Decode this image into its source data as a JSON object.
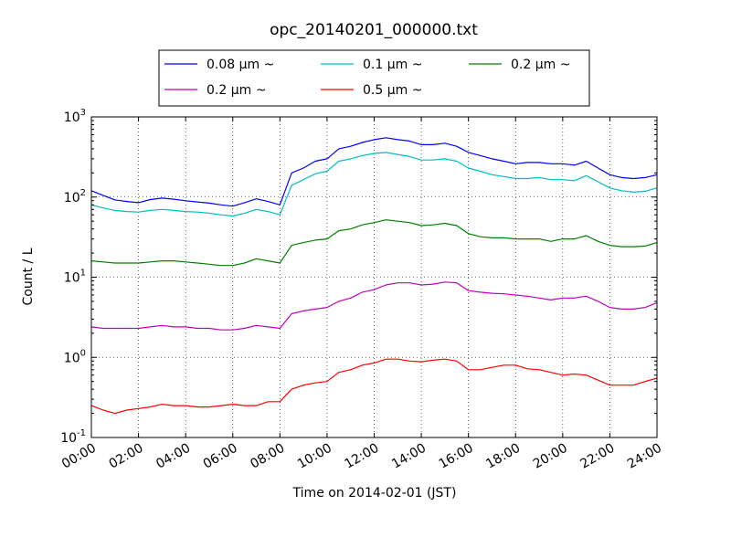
{
  "chart_data": {
    "type": "line",
    "title": "opc_20140201_000000.txt",
    "xlabel": "Time on 2014-02-01 (JST)",
    "ylabel": "Count / L",
    "yscale": "log",
    "ylim": [
      0.1,
      1000
    ],
    "xlim": [
      "00:00",
      "24:00"
    ],
    "x_ticks": [
      "00:00",
      "02:00",
      "04:00",
      "06:00",
      "08:00",
      "10:00",
      "12:00",
      "14:00",
      "16:00",
      "18:00",
      "20:00",
      "22:00",
      "24:00"
    ],
    "y_ticks": [
      {
        "value": 0.1,
        "base": "10",
        "exp": "-1"
      },
      {
        "value": 1,
        "base": "10",
        "exp": "0"
      },
      {
        "value": 10,
        "base": "10",
        "exp": "1"
      },
      {
        "value": 100,
        "base": "10",
        "exp": "2"
      },
      {
        "value": 1000,
        "base": "10",
        "exp": "3"
      }
    ],
    "grid": true,
    "legend_position": "top",
    "x": [
      "00:00",
      "00:30",
      "01:00",
      "01:30",
      "02:00",
      "02:30",
      "03:00",
      "03:30",
      "04:00",
      "04:30",
      "05:00",
      "05:30",
      "06:00",
      "06:30",
      "07:00",
      "07:30",
      "08:00",
      "08:30",
      "09:00",
      "09:30",
      "10:00",
      "10:30",
      "11:00",
      "11:30",
      "12:00",
      "12:30",
      "13:00",
      "13:30",
      "14:00",
      "14:30",
      "15:00",
      "15:30",
      "16:00",
      "16:30",
      "17:00",
      "17:30",
      "18:00",
      "18:30",
      "19:00",
      "19:30",
      "20:00",
      "20:30",
      "21:00",
      "21:30",
      "22:00",
      "22:30",
      "23:00",
      "23:30",
      "24:00"
    ],
    "series": [
      {
        "name": "0.08 μm ~",
        "color": "#0000ff",
        "values": [
          120,
          105,
          92,
          88,
          85,
          93,
          97,
          94,
          90,
          87,
          84,
          80,
          77,
          85,
          95,
          88,
          80,
          200,
          230,
          280,
          300,
          400,
          430,
          480,
          520,
          550,
          520,
          500,
          450,
          450,
          470,
          430,
          360,
          330,
          300,
          280,
          260,
          270,
          270,
          260,
          260,
          250,
          280,
          230,
          190,
          175,
          170,
          175,
          190
        ]
      },
      {
        "name": "0.1 μm ~",
        "color": "#00bfbf",
        "values": [
          80,
          73,
          68,
          66,
          65,
          68,
          70,
          68,
          66,
          65,
          63,
          60,
          58,
          63,
          70,
          66,
          60,
          140,
          165,
          195,
          210,
          280,
          300,
          330,
          350,
          360,
          340,
          320,
          290,
          290,
          300,
          280,
          230,
          210,
          190,
          180,
          170,
          170,
          175,
          165,
          165,
          160,
          185,
          155,
          130,
          120,
          115,
          118,
          130
        ]
      },
      {
        "name": "0.2 μm ~",
        "color": "#008000",
        "values": [
          16,
          15.5,
          15,
          15,
          15,
          15.5,
          16,
          16,
          15.5,
          15,
          14.5,
          14,
          14,
          15,
          17,
          16,
          15,
          25,
          27,
          29,
          30,
          38,
          40,
          45,
          48,
          52,
          50,
          48,
          44,
          45,
          47,
          44,
          35,
          32,
          31,
          31,
          30,
          30,
          30,
          28,
          30,
          30,
          33,
          28,
          25,
          24,
          24,
          24.5,
          27
        ]
      },
      {
        "name": "0.2 μm ~",
        "color": "#bf00bf",
        "values": [
          2.4,
          2.3,
          2.3,
          2.3,
          2.3,
          2.4,
          2.5,
          2.4,
          2.4,
          2.3,
          2.3,
          2.2,
          2.2,
          2.3,
          2.5,
          2.4,
          2.3,
          3.5,
          3.8,
          4.0,
          4.2,
          5.0,
          5.5,
          6.5,
          7.0,
          8.0,
          8.5,
          8.5,
          8.0,
          8.2,
          8.7,
          8.5,
          6.8,
          6.5,
          6.3,
          6.2,
          6.0,
          5.8,
          5.5,
          5.2,
          5.5,
          5.5,
          5.8,
          5.0,
          4.2,
          4.0,
          4.0,
          4.2,
          4.8
        ]
      },
      {
        "name": "0.5 μm ~",
        "color": "#ff0000",
        "values": [
          0.25,
          0.22,
          0.2,
          0.22,
          0.23,
          0.24,
          0.26,
          0.25,
          0.25,
          0.24,
          0.24,
          0.25,
          0.26,
          0.25,
          0.25,
          0.28,
          0.28,
          0.4,
          0.45,
          0.48,
          0.5,
          0.65,
          0.7,
          0.8,
          0.85,
          0.95,
          0.95,
          0.9,
          0.88,
          0.92,
          0.95,
          0.9,
          0.7,
          0.7,
          0.75,
          0.8,
          0.8,
          0.72,
          0.7,
          0.65,
          0.6,
          0.62,
          0.6,
          0.52,
          0.45,
          0.45,
          0.45,
          0.5,
          0.55
        ]
      }
    ]
  }
}
